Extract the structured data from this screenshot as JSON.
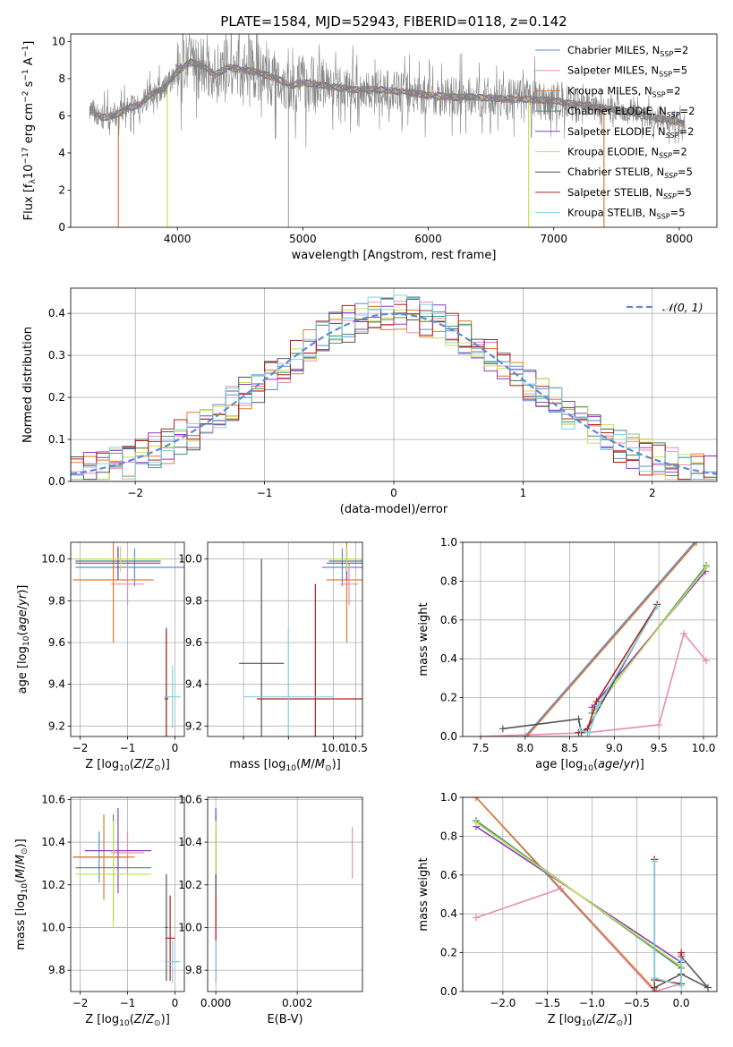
{
  "page_title": "PLATE=1584, MJD=52943, FIBERID=0118, z=0.142",
  "series_styles": [
    {
      "name": "Chabrier MILES, N_SSP=2",
      "color": "#5b8bd8"
    },
    {
      "name": "Salpeter MILES, N_SSP=5",
      "color": "#e58fb5"
    },
    {
      "name": "Kroupa MILES, N_SSP=2",
      "color": "#e07a2c"
    },
    {
      "name": "Chabrier ELODIE, N_SSP=2",
      "color": "#3e8f6e"
    },
    {
      "name": "Salpeter ELODIE, N_SSP=2",
      "color": "#8a3fc0"
    },
    {
      "name": "Kroupa ELODIE, N_SSP=2",
      "color": "#c9e052"
    },
    {
      "name": "Chabrier STELIB, N_SSP=5",
      "color": "#555555"
    },
    {
      "name": "Salpeter STELIB, N_SSP=5",
      "color": "#b22222"
    },
    {
      "name": "Kroupa STELIB, N_SSP=5",
      "color": "#7fd3e0"
    }
  ],
  "legend_html": [
    "Chabrier MILES, N<tspan class='sub' dy='3'>SSP</tspan><tspan dy='-3'>=2</tspan>",
    "Salpeter MILES, N<tspan class='sub' dy='3'>SSP</tspan><tspan dy='-3'>=5</tspan>",
    "Kroupa MILES, N<tspan class='sub' dy='3'>SSP</tspan><tspan dy='-3'>=2</tspan>",
    "Chabrier ELODIE, N<tspan class='sub' dy='3' font-style='italic'>SSP</tspan><tspan dy='-3'>=2</tspan>",
    "Salpeter ELODIE, N<tspan class='sub' dy='3' font-style='italic'>SSP</tspan><tspan dy='-3'>=2</tspan>",
    "Kroupa ELODIE, N<tspan class='sub' dy='3' font-style='italic'>SSP</tspan><tspan dy='-3'>=2</tspan>",
    "Chabrier STELIB, N<tspan class='sub' dy='3' font-style='italic'>SSP</tspan><tspan dy='-3'>=5</tspan>",
    "Salpeter STELIB, N<tspan class='sub' dy='3' font-style='italic'>SSP</tspan><tspan dy='-3'>=5</tspan>",
    "Kroupa STELIB, N<tspan class='sub' dy='3'>SSP</tspan><tspan dy='-3'>=5</tspan>"
  ],
  "chart_data": [
    {
      "id": "spectrum",
      "type": "line",
      "xlabel": "wavelength [Angstrom, rest frame]",
      "ylabel": "Flux [f_λ 10^-17 erg cm^-2 s^-1 A^-1]",
      "xlim": [
        3150,
        8300
      ],
      "ylim": [
        0,
        10.4
      ],
      "xticks": [
        4000,
        5000,
        6000,
        7000,
        8000
      ],
      "yticks": [
        0,
        2,
        4,
        6,
        8,
        10
      ],
      "continuum": {
        "x": [
          3300,
          3400,
          3500,
          3600,
          3700,
          3800,
          3900,
          4000,
          4100,
          4200,
          4300,
          4400,
          4500,
          4600,
          4700,
          4800,
          4900,
          5000,
          5200,
          5400,
          5600,
          5800,
          6000,
          6200,
          6400,
          6600,
          6800,
          7000,
          7200,
          7400,
          7600,
          7800,
          8050
        ],
        "y": [
          6.3,
          5.9,
          6.0,
          6.4,
          6.6,
          7.2,
          7.5,
          8.4,
          8.9,
          8.7,
          8.2,
          8.6,
          8.5,
          8.4,
          8.2,
          8.0,
          7.6,
          7.8,
          7.6,
          7.4,
          7.4,
          7.3,
          7.1,
          7.0,
          7.0,
          6.9,
          6.9,
          6.8,
          6.6,
          6.4,
          6.2,
          5.9,
          5.6
        ]
      },
      "dips": [
        {
          "x": 3530,
          "series": "Kroupa MILES, N_SSP=2"
        },
        {
          "x": 3920,
          "series": "Kroupa ELODIE, N_SSP=2"
        },
        {
          "x": 6800,
          "series": "Kroupa ELODIE, N_SSP=2"
        },
        {
          "x": 7400,
          "series": "Kroupa MILES, N_SSP=2"
        }
      ]
    },
    {
      "id": "residual-hist",
      "type": "histogram",
      "xlabel": "(data-model)/error",
      "ylabel": "Normed distribution",
      "xlim": [
        -2.5,
        2.5
      ],
      "ylim": [
        0,
        0.46
      ],
      "xticks": [
        -2,
        -1,
        0,
        1,
        2
      ],
      "yticks": [
        0.0,
        0.1,
        0.2,
        0.3,
        0.4
      ],
      "grid": true,
      "legend": "top-right",
      "reference_curve": {
        "name": "𝒩(0, 1)",
        "mean": 0,
        "sigma": 1
      },
      "bin_width": 0.1
    },
    {
      "id": "age-vs-Z",
      "type": "errorbar",
      "xlabel": "Z [log10(Z/Z⊙)]",
      "ylabel": "age [log10(age/yr)]",
      "xlim": [
        -2.2,
        0.2
      ],
      "ylim": [
        9.15,
        10.08
      ],
      "xticks": [
        -2,
        -1,
        0
      ],
      "yticks": [
        9.2,
        9.4,
        9.6,
        9.8,
        10.0
      ],
      "grid": true,
      "points": [
        {
          "series": "Chabrier MILES, N_SSP=2",
          "x": -0.85,
          "xerr": 1.25,
          "y": 9.96,
          "yerr": 0.09
        },
        {
          "series": "Salpeter MILES, N_SSP=5",
          "x": -1.0,
          "xerr": 0.35,
          "y": 9.88,
          "yerr": 0.1
        },
        {
          "series": "Kroupa MILES, N_SSP=2",
          "x": -1.3,
          "xerr": 0.85,
          "y": 9.9,
          "yerr": 0.3
        },
        {
          "series": "Chabrier ELODIE, N_SSP=2",
          "x": -1.2,
          "xerr": 0.9,
          "y": 9.99,
          "yerr": 0.06
        },
        {
          "series": "Salpeter ELODIE, N_SSP=2",
          "x": -1.2,
          "xerr": 0.9,
          "y": 9.98,
          "yerr": 0.08
        },
        {
          "series": "Kroupa ELODIE, N_SSP=2",
          "x": -1.15,
          "xerr": 0.95,
          "y": 10.0,
          "yerr": 0.06
        },
        {
          "series": "Chabrier STELIB, N_SSP=5",
          "x": -0.18,
          "xerr": 0.04,
          "y": 9.34,
          "yerr": 0.33
        },
        {
          "series": "Salpeter STELIB, N_SSP=5",
          "x": -0.18,
          "xerr": 0.04,
          "y": 9.33,
          "yerr": 0.33
        },
        {
          "series": "Kroupa STELIB, N_SSP=5",
          "x": -0.05,
          "xerr": 0.17,
          "y": 9.34,
          "yerr": 0.15
        }
      ]
    },
    {
      "id": "age-vs-mass",
      "type": "errorbar",
      "xlabel": "mass [log10(M/M⊙)]",
      "ylabel": "",
      "xlim": [
        7.2,
        10.65
      ],
      "ylim": [
        9.15,
        10.08
      ],
      "xticks": [
        8,
        9,
        10,
        10.5
      ],
      "tick_labels": [
        "",
        "",
        "10.0",
        "10.5"
      ],
      "yticks": [
        9.2,
        9.4,
        9.6,
        9.8,
        10.0
      ],
      "grid": true,
      "points": [
        {
          "series": "Chabrier MILES, N_SSP=2",
          "x": 10.2,
          "xerr": 0.45,
          "y": 9.96,
          "yerr": 0.09
        },
        {
          "series": "Salpeter MILES, N_SSP=5",
          "x": 10.35,
          "xerr": 0.2,
          "y": 9.88,
          "yerr": 0.1
        },
        {
          "series": "Kroupa MILES, N_SSP=2",
          "x": 10.3,
          "xerr": 0.45,
          "y": 9.9,
          "yerr": 0.3
        },
        {
          "series": "Chabrier ELODIE, N_SSP=2",
          "x": 10.3,
          "xerr": 0.4,
          "y": 9.99,
          "yerr": 0.06
        },
        {
          "series": "Salpeter ELODIE, N_SSP=2",
          "x": 10.3,
          "xerr": 0.45,
          "y": 9.98,
          "yerr": 0.08
        },
        {
          "series": "Kroupa ELODIE, N_SSP=2",
          "x": 10.3,
          "xerr": 0.4,
          "y": 10.0,
          "yerr": 0.06
        },
        {
          "series": "Chabrier STELIB, N_SSP=5",
          "x": 8.4,
          "xerr": 0.5,
          "y": 9.5,
          "yerr": 0.5
        },
        {
          "series": "Salpeter STELIB, N_SSP=5",
          "x": 9.6,
          "xerr": 1.3,
          "y": 9.33,
          "yerr": 0.55
        },
        {
          "series": "Kroupa STELIB, N_SSP=5",
          "x": 9.0,
          "xerr": 1.0,
          "y": 9.34,
          "yerr": 0.33
        }
      ]
    },
    {
      "id": "mass-weight-vs-age",
      "type": "line",
      "xlabel": "age [log10(age/yr)]",
      "ylabel": "mass weight",
      "xlim": [
        7.3,
        10.15
      ],
      "ylim": [
        0,
        1.0
      ],
      "xticks": [
        7.5,
        8.0,
        8.5,
        9.0,
        9.5,
        10.0
      ],
      "yticks": [
        0.0,
        0.2,
        0.4,
        0.6,
        0.8,
        1.0
      ],
      "grid": true,
      "series": [
        {
          "name": "Chabrier MILES, N_SSP=2",
          "x": [
            8.0,
            9.9
          ],
          "y": [
            0.0,
            1.0
          ]
        },
        {
          "name": "Salpeter MILES, N_SSP=5",
          "x": [
            7.5,
            8.7,
            9.5,
            9.78,
            10.03
          ],
          "y": [
            0.0,
            0.02,
            0.06,
            0.53,
            0.39
          ]
        },
        {
          "name": "Kroupa MILES, N_SSP=2",
          "x": [
            8.02,
            9.92
          ],
          "y": [
            0.0,
            1.0
          ]
        },
        {
          "name": "Chabrier ELODIE, N_SSP=2",
          "x": [
            8.75,
            10.03
          ],
          "y": [
            0.12,
            0.88
          ]
        },
        {
          "name": "Salpeter ELODIE, N_SSP=2",
          "x": [
            8.75,
            10.02
          ],
          "y": [
            0.15,
            0.85
          ]
        },
        {
          "name": "Kroupa ELODIE, N_SSP=2",
          "x": [
            8.76,
            10.03
          ],
          "y": [
            0.13,
            0.87
          ]
        },
        {
          "name": "Chabrier STELIB, N_SSP=5",
          "x": [
            7.75,
            8.6,
            8.63,
            8.7,
            9.48
          ],
          "y": [
            0.04,
            0.09,
            0.02,
            0.04,
            0.68
          ]
        },
        {
          "name": "Salpeter STELIB, N_SSP=5",
          "x": [
            8.6,
            8.7,
            8.8,
            9.48
          ],
          "y": [
            0.02,
            0.04,
            0.18,
            0.68
          ]
        },
        {
          "name": "Kroupa STELIB, N_SSP=5",
          "x": [
            8.62,
            8.72,
            8.82,
            9.48
          ],
          "y": [
            0.03,
            0.02,
            0.16,
            0.67
          ]
        }
      ]
    },
    {
      "id": "mass-vs-Z",
      "type": "errorbar",
      "xlabel": "Z [log10(Z/Z⊙)]",
      "ylabel": "mass [log10(M/M⊙)]",
      "xlim": [
        -2.2,
        0.2
      ],
      "ylim": [
        9.7,
        10.61
      ],
      "xticks": [
        -2,
        -1,
        0
      ],
      "yticks": [
        9.8,
        10.0,
        10.2,
        10.4,
        10.6
      ],
      "grid": true,
      "points": [
        {
          "series": "Chabrier MILES, N_SSP=2",
          "x": -1.6,
          "xerr": 0.55,
          "y": 10.33,
          "yerr": 0.12
        },
        {
          "series": "Salpeter MILES, N_SSP=5",
          "x": -1.0,
          "xerr": 0.35,
          "y": 10.35,
          "yerr": 0.1
        },
        {
          "series": "Kroupa MILES, N_SSP=2",
          "x": -1.5,
          "xerr": 0.65,
          "y": 10.33,
          "yerr": 0.2
        },
        {
          "series": "Chabrier ELODIE, N_SSP=2",
          "x": -1.3,
          "xerr": 0.8,
          "y": 10.28,
          "yerr": 0.25
        },
        {
          "series": "Salpeter ELODIE, N_SSP=2",
          "x": -1.2,
          "xerr": 0.7,
          "y": 10.36,
          "yerr": 0.2
        },
        {
          "series": "Kroupa ELODIE, N_SSP=2",
          "x": -1.3,
          "xerr": 0.8,
          "y": 10.25,
          "yerr": 0.25
        },
        {
          "series": "Chabrier STELIB, N_SSP=5",
          "x": -0.18,
          "xerr": 0.03,
          "y": 10.0,
          "yerr": 0.25
        },
        {
          "series": "Salpeter STELIB, N_SSP=5",
          "x": -0.1,
          "xerr": 0.1,
          "y": 9.95,
          "yerr": 0.2
        },
        {
          "series": "Kroupa STELIB, N_SSP=5",
          "x": -0.05,
          "xerr": 0.17,
          "y": 9.84,
          "yerr": 0.1
        }
      ]
    },
    {
      "id": "mass-vs-ebv",
      "type": "errorbar",
      "xlabel": "E(B-V)",
      "ylabel": "",
      "xlim": [
        -0.0002,
        0.0036
      ],
      "ylim": [
        9.7,
        10.61
      ],
      "xticks": [
        0.0,
        0.002
      ],
      "tick_labels": [
        "0.000",
        "0.002"
      ],
      "yticks": [
        9.8,
        10.0,
        10.2,
        10.4,
        10.6
      ],
      "grid": true,
      "points": [
        {
          "series": "Chabrier MILES, N_SSP=2",
          "x": 0.0,
          "xerr": 0,
          "y": 10.33,
          "yerr": 0.12
        },
        {
          "series": "Salpeter MILES, N_SSP=5",
          "x": 0.00335,
          "xerr": 0,
          "y": 10.35,
          "yerr": 0.12
        },
        {
          "series": "Kroupa MILES, N_SSP=2",
          "x": 0.0,
          "xerr": 0,
          "y": 10.33,
          "yerr": 0.2
        },
        {
          "series": "Chabrier ELODIE, N_SSP=2",
          "x": 0.0,
          "xerr": 0,
          "y": 10.28,
          "yerr": 0.25
        },
        {
          "series": "Salpeter ELODIE, N_SSP=2",
          "x": 0.0,
          "xerr": 0,
          "y": 10.36,
          "yerr": 0.2
        },
        {
          "series": "Kroupa ELODIE, N_SSP=2",
          "x": 0.0,
          "xerr": 0,
          "y": 10.25,
          "yerr": 0.25
        },
        {
          "series": "Chabrier STELIB, N_SSP=5",
          "x": 0.0,
          "xerr": 0,
          "y": 10.0,
          "yerr": 0.25
        },
        {
          "series": "Salpeter STELIB, N_SSP=5",
          "x": 0.0,
          "xerr": 0,
          "y": 9.95,
          "yerr": 0.2
        },
        {
          "series": "Kroupa STELIB, N_SSP=5",
          "x": 0.0,
          "xerr": 0,
          "y": 9.84,
          "yerr": 0.1
        }
      ]
    },
    {
      "id": "mass-weight-vs-Z",
      "type": "line",
      "xlabel": "Z [log10(Z/Z⊙)]",
      "ylabel": "mass weight",
      "xlim": [
        -2.45,
        0.4
      ],
      "ylim": [
        0,
        1.0
      ],
      "xticks": [
        -2.0,
        -1.5,
        -1.0,
        -0.5,
        0.0
      ],
      "yticks": [
        0.0,
        0.2,
        0.4,
        0.6,
        0.8,
        1.0
      ],
      "grid": true,
      "series": [
        {
          "name": "Chabrier MILES, N_SSP=2",
          "x": [
            -2.3,
            -0.3
          ],
          "y": [
            1.0,
            0.0
          ]
        },
        {
          "name": "Salpeter MILES, N_SSP=5",
          "x": [
            -2.3,
            -1.35,
            -0.3,
            0.0,
            0.0
          ],
          "y": [
            0.38,
            0.53,
            0.0,
            0.04,
            0.19
          ]
        },
        {
          "name": "Kroupa MILES, N_SSP=2",
          "x": [
            -2.3,
            -0.28
          ],
          "y": [
            1.0,
            0.0
          ]
        },
        {
          "name": "Chabrier ELODIE, N_SSP=2",
          "x": [
            -2.3,
            0.0
          ],
          "y": [
            0.88,
            0.12
          ]
        },
        {
          "name": "Salpeter ELODIE, N_SSP=2",
          "x": [
            -2.3,
            0.0
          ],
          "y": [
            0.85,
            0.15
          ]
        },
        {
          "name": "Kroupa ELODIE, N_SSP=2",
          "x": [
            -2.3,
            0.0
          ],
          "y": [
            0.87,
            0.13
          ]
        },
        {
          "name": "Chabrier STELIB, N_SSP=5",
          "x": [
            -0.3,
            -0.3,
            0.0,
            0.3,
            0.0
          ],
          "y": [
            0.68,
            0.02,
            0.09,
            0.02,
            0.18
          ]
        },
        {
          "name": "Salpeter STELIB, N_SSP=5",
          "x": [
            -0.3,
            -0.3,
            0.0,
            0.0
          ],
          "y": [
            0.68,
            0.06,
            0.04,
            0.2
          ]
        },
        {
          "name": "Kroupa STELIB, N_SSP=5",
          "x": [
            -0.3,
            -0.3,
            0.0,
            0.0
          ],
          "y": [
            0.67,
            0.07,
            0.03,
            0.16
          ]
        }
      ]
    }
  ]
}
